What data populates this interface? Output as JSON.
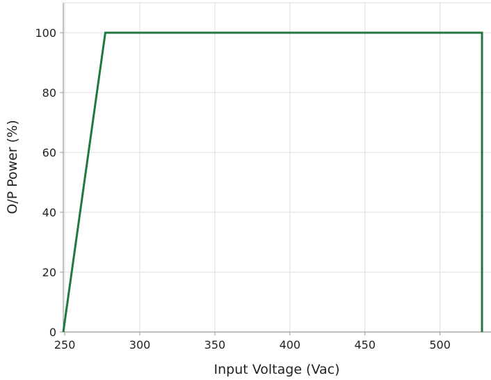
{
  "chart_data": {
    "type": "line",
    "title": "",
    "xlabel": "Input Voltage (Vac)",
    "ylabel": "O/P Power (%)",
    "xlim": [
      249,
      534
    ],
    "ylim": [
      0,
      110
    ],
    "xticks": [
      250,
      300,
      350,
      400,
      450,
      500
    ],
    "xtick_labels": [
      "250",
      "300",
      "350",
      "400",
      "450",
      "500"
    ],
    "yticks": [
      0,
      20,
      40,
      60,
      80,
      100
    ],
    "ytick_labels": [
      "0",
      "20",
      "40",
      "60",
      "80",
      "100"
    ],
    "grid": true,
    "legend": "none",
    "series": [
      {
        "color": "#1e7a3c",
        "x": [
          249,
          277,
          528,
          528
        ],
        "y": [
          0,
          100,
          100,
          0
        ]
      }
    ]
  },
  "colors": {
    "grid": "#dddddd",
    "axis": "#999999",
    "text": "#222222"
  }
}
